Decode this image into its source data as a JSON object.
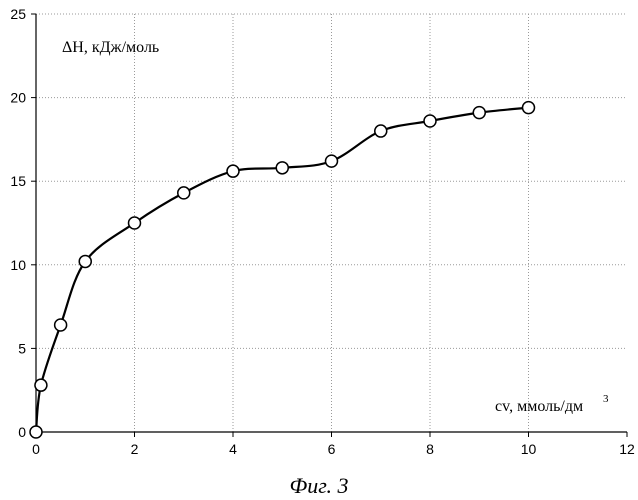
{
  "chart_data": {
    "type": "line",
    "x": [
      0,
      0.1,
      0.5,
      1,
      2,
      3,
      4,
      5,
      6,
      7,
      8,
      9,
      10
    ],
    "series": [
      {
        "values": [
          0,
          2.8,
          6.4,
          10.2,
          12.5,
          14.3,
          15.6,
          15.8,
          16.2,
          18.0,
          18.6,
          19.1,
          19.4
        ]
      }
    ],
    "xlim": [
      0,
      12
    ],
    "ylim": [
      0,
      25
    ],
    "xticks": [
      "0",
      "2",
      "4",
      "6",
      "8",
      "10",
      "12"
    ],
    "yticks": [
      "0",
      "5",
      "10",
      "15",
      "20",
      "25"
    ],
    "ylabel": "ΔH, кДж/моль",
    "xlabel": "cv, ммоль/дм",
    "xlabel_sup": "3",
    "caption": "Фиг. 3",
    "grid": true,
    "markers": "open-circle",
    "line_color": "#000000"
  }
}
